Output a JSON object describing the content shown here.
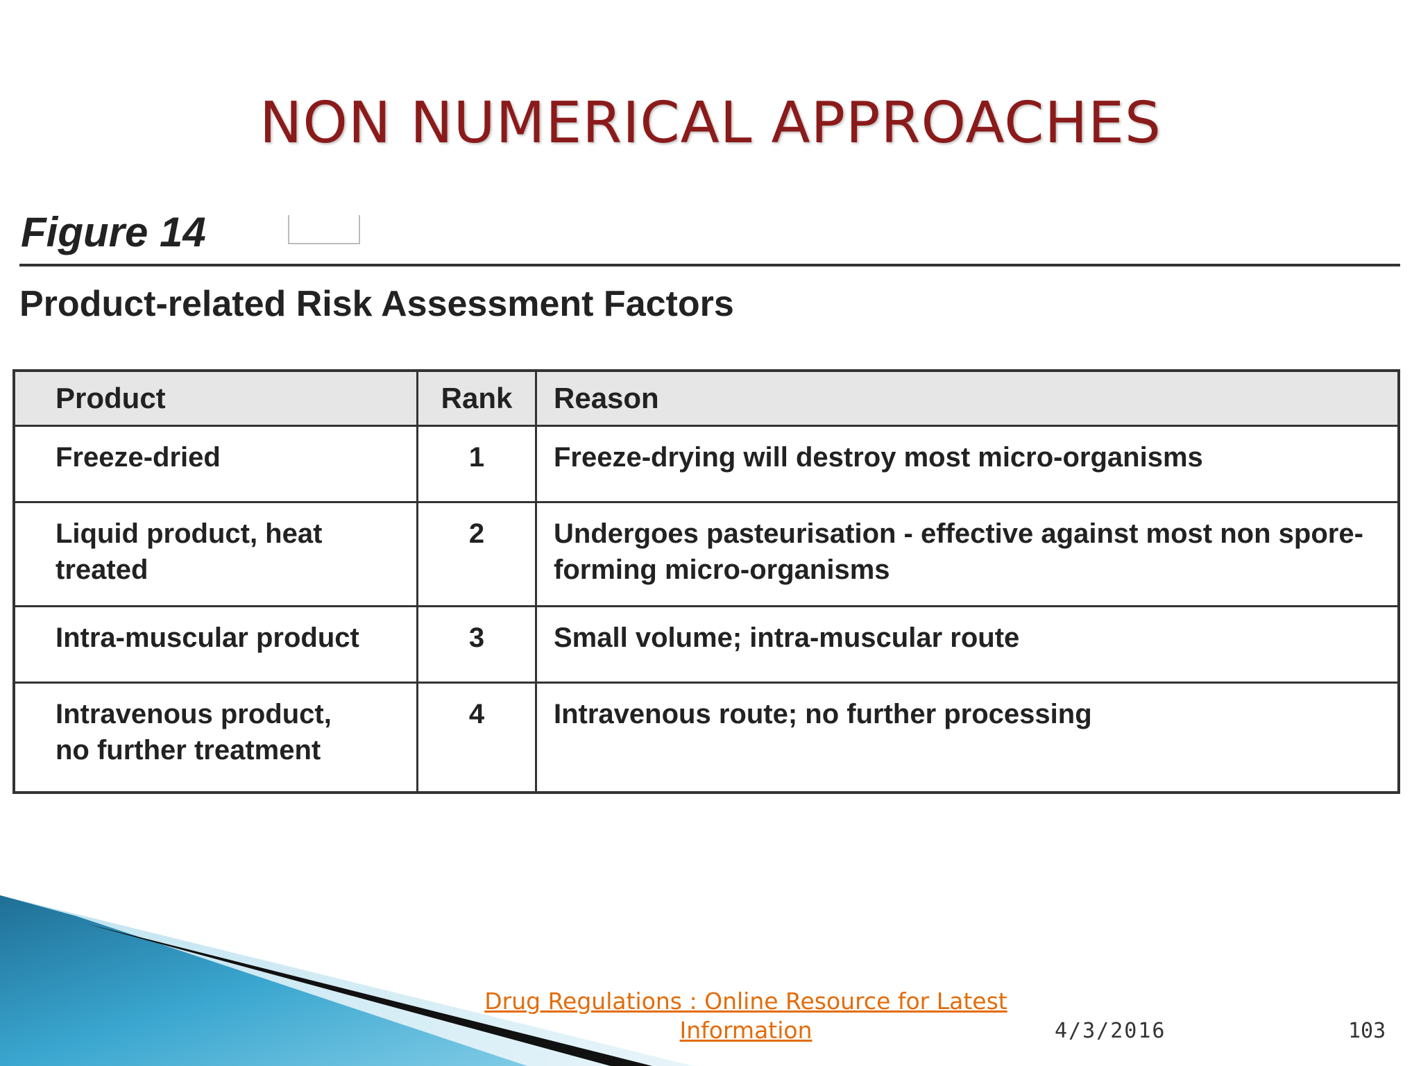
{
  "slide": {
    "title": "NON NUMERICAL APPROACHES"
  },
  "figure": {
    "label": "Figure 14",
    "caption": "Product-related Risk Assessment Factors"
  },
  "table": {
    "headers": [
      "Product",
      "Rank",
      "Reason"
    ],
    "rows": [
      {
        "product_lines": [
          "Freeze-dried"
        ],
        "rank": "1",
        "reason": "Freeze-drying will destroy most micro-organisms"
      },
      {
        "product_lines": [
          "Liquid product, heat treated"
        ],
        "rank": "2",
        "reason": "Undergoes pasteurisation - effective against most non spore-forming micro-organisms"
      },
      {
        "product_lines": [
          "Intra-muscular product"
        ],
        "rank": "3",
        "reason": "Small volume; intra-muscular route"
      },
      {
        "product_lines": [
          "Intravenous product,",
          "no further treatment"
        ],
        "rank": "4",
        "reason": "Intravenous route; no further processing"
      }
    ]
  },
  "footer": {
    "link_line1": "Drug Regulations : Online Resource for Latest",
    "link_line2": "Information",
    "date": "4/3/2016",
    "page_number": "103"
  },
  "colors": {
    "title": "#8b1a1a",
    "link": "#e36c0a",
    "header_bg": "#e6e6e6",
    "deco_blue": "#2a7fa8",
    "deco_dark": "#111111"
  }
}
